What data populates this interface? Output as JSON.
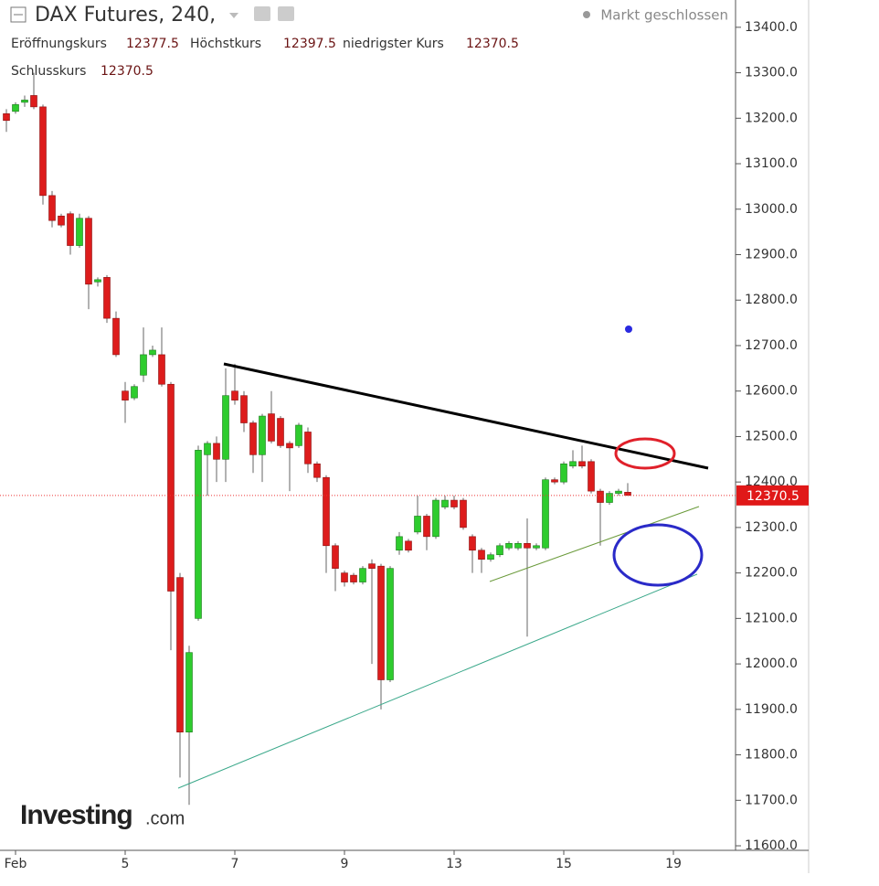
{
  "chart_data": {
    "type": "candlestick",
    "title": "DAX Futures, 240,",
    "status": "Markt geschlossen",
    "ohlc_labels": {
      "open": "Eröffnungskurs",
      "high": "Höchstkurs",
      "low": "niedrigster Kurs",
      "close": "Schlusskurs"
    },
    "logo": [
      "Investing",
      ".com"
    ],
    "categories": [
      null,
      "Feb",
      null,
      null,
      null,
      null,
      null,
      null,
      null,
      null,
      null,
      null,
      null,
      "5",
      null,
      null,
      null,
      null,
      null,
      null,
      null,
      null,
      null,
      null,
      null,
      "7",
      null,
      null,
      null,
      null,
      null,
      null,
      null,
      null,
      null,
      null,
      null,
      "9",
      null,
      null,
      null,
      null,
      null,
      null,
      null,
      null,
      null,
      null,
      null,
      "13",
      null,
      null,
      null,
      null,
      null,
      null,
      null,
      null,
      null,
      null,
      null,
      "15",
      null,
      null,
      null,
      null,
      null,
      null,
      null,
      null,
      null,
      null,
      null,
      "19",
      null,
      null,
      null,
      null,
      null,
      null
    ],
    "open": [
      13210,
      13215,
      13235,
      13250,
      13225,
      13030,
      12985,
      12990,
      12920,
      12980,
      12840,
      12850,
      12760,
      12600,
      12585,
      12635,
      12680,
      12680,
      12615,
      12190,
      11850,
      12100,
      12460,
      12485,
      12450,
      12600,
      12590,
      12530,
      12460,
      12550,
      12540,
      12485,
      12480,
      12510,
      12440,
      12410,
      12260,
      12200,
      12195,
      12180,
      12220,
      12215,
      11965,
      12250,
      12270,
      12290,
      12325,
      12280,
      12345,
      12360,
      12360,
      12280,
      12250,
      12230,
      12240,
      12255,
      12255,
      12265,
      12255,
      12255,
      12405,
      12400,
      12435,
      12445,
      12445,
      12380,
      12355,
      12375,
      12377.5,
      null,
      null,
      null,
      null,
      null,
      null,
      null,
      null,
      null,
      null,
      null
    ],
    "high": [
      13220,
      13235,
      13250,
      13300,
      13230,
      13040,
      12990,
      12995,
      12990,
      12985,
      12850,
      12855,
      12775,
      12620,
      12615,
      12740,
      12700,
      12740,
      12620,
      12200,
      12040,
      12480,
      12490,
      12500,
      12650,
      12660,
      12600,
      12535,
      12550,
      12600,
      12545,
      12490,
      12530,
      12520,
      12445,
      12415,
      12265,
      12205,
      12200,
      12215,
      12230,
      12220,
      12215,
      12290,
      12275,
      12370,
      12330,
      12365,
      12370,
      12370,
      12365,
      12285,
      12255,
      12245,
      12265,
      12270,
      12270,
      12320,
      12265,
      12410,
      12410,
      12445,
      12470,
      12480,
      12450,
      12385,
      12380,
      12385,
      12397.5,
      null,
      null,
      null,
      null,
      null,
      null,
      null,
      null,
      null,
      null,
      null
    ],
    "low": [
      13170,
      13210,
      13225,
      13220,
      13010,
      12960,
      12960,
      12900,
      12915,
      12780,
      12830,
      12750,
      12675,
      12530,
      12580,
      12620,
      12675,
      12610,
      12030,
      11750,
      11690,
      12095,
      12370,
      12400,
      12400,
      12570,
      12510,
      12420,
      12400,
      12485,
      12475,
      12380,
      12475,
      12420,
      12400,
      12200,
      12160,
      12170,
      12175,
      12175,
      12000,
      11900,
      11960,
      12240,
      12245,
      12285,
      12250,
      12275,
      12340,
      12340,
      12295,
      12200,
      12200,
      12225,
      12235,
      12250,
      12250,
      12060,
      12250,
      12250,
      12395,
      12395,
      12430,
      12430,
      12375,
      12260,
      12350,
      12370,
      12370.5,
      null,
      null,
      null,
      null,
      null,
      null,
      null,
      null,
      null,
      null,
      null
    ],
    "close": [
      13195,
      13230,
      13240,
      13225,
      13030,
      12975,
      12965,
      12920,
      12980,
      12835,
      12845,
      12760,
      12680,
      12580,
      12610,
      12680,
      12690,
      12615,
      12160,
      11850,
      12025,
      12470,
      12485,
      12450,
      12590,
      12580,
      12530,
      12460,
      12545,
      12490,
      12480,
      12475,
      12525,
      12440,
      12410,
      12260,
      12210,
      12180,
      12180,
      12210,
      12210,
      11965,
      12210,
      12280,
      12250,
      12325,
      12280,
      12360,
      12360,
      12345,
      12300,
      12250,
      12230,
      12240,
      12260,
      12265,
      12265,
      12255,
      12260,
      12405,
      12400,
      12440,
      12445,
      12435,
      12380,
      12355,
      12375,
      12380,
      12370.5,
      null,
      null,
      null,
      null,
      null,
      null,
      null,
      null,
      null,
      null,
      null
    ],
    "up_color": "#2ecc2e",
    "down_color": "#dd1c1c",
    "ylim": [
      11590,
      13460
    ],
    "yticks": [
      {
        "value": 11600,
        "label": "11600.0"
      },
      {
        "value": 11700,
        "label": "11700.0"
      },
      {
        "value": 11800,
        "label": "11800.0"
      },
      {
        "value": 11900,
        "label": "11900.0"
      },
      {
        "value": 12000,
        "label": "12000.0"
      },
      {
        "value": 12100,
        "label": "12100.0"
      },
      {
        "value": 12200,
        "label": "12200.0"
      },
      {
        "value": 12300,
        "label": "12300.0"
      },
      {
        "value": 12400,
        "label": "12400.0"
      },
      {
        "value": 12500,
        "label": "12500.0"
      },
      {
        "value": 12600,
        "label": "12600.0"
      },
      {
        "value": 12700,
        "label": "12700.0"
      },
      {
        "value": 12800,
        "label": "12800.0"
      },
      {
        "value": 12900,
        "label": "12900.0"
      },
      {
        "value": 13000,
        "label": "13000.0"
      },
      {
        "value": 13100,
        "label": "13100.0"
      },
      {
        "value": 13200,
        "label": "13200.0"
      },
      {
        "value": 13300,
        "label": "13300.0"
      },
      {
        "value": 13400,
        "label": "13400.0"
      }
    ]
  }
}
